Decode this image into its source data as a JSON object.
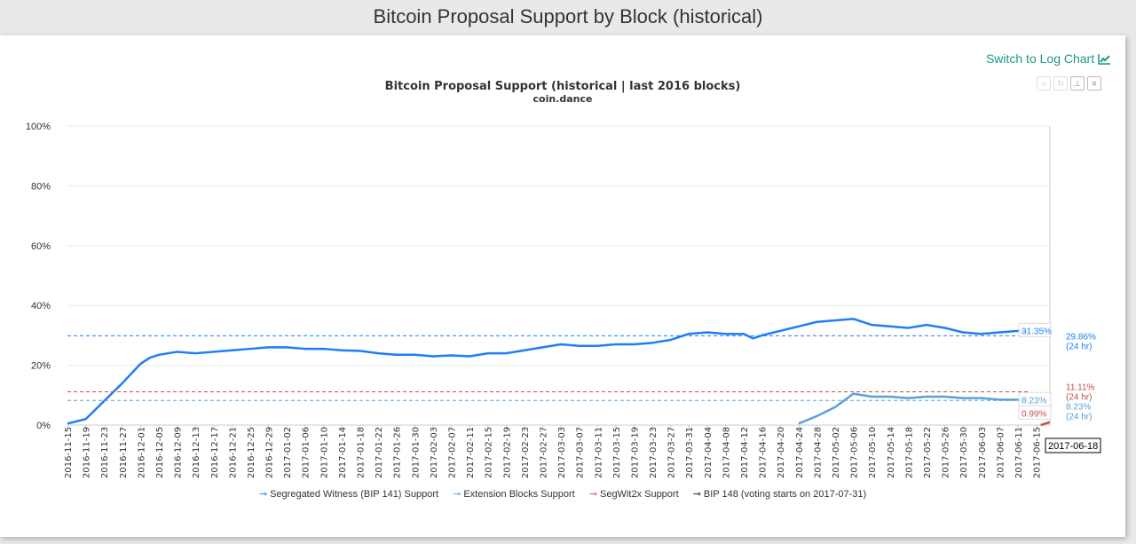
{
  "page_title": "Bitcoin Proposal Support by Block (historical)",
  "log_link": "Switch to Log Chart",
  "toolbar": {
    "icons": [
      "zoom-icon",
      "reset-icon",
      "pin-icon",
      "menu-icon"
    ]
  },
  "chart_data": {
    "type": "line",
    "title": "Bitcoin Proposal Support (historical | last 2016 blocks)",
    "subtitle": "coin.dance",
    "ylim": [
      0,
      100
    ],
    "y_ticks": [
      "0%",
      "20%",
      "40%",
      "60%",
      "80%",
      "100%"
    ],
    "y_tick_values": [
      0,
      20,
      40,
      60,
      80,
      100
    ],
    "x_range": [
      "2016-11-15",
      "2017-06-18"
    ],
    "x_ticks": [
      "2016-11-15",
      "2016-11-19",
      "2016-11-23",
      "2016-11-27",
      "2016-12-01",
      "2016-12-05",
      "2016-12-09",
      "2016-12-13",
      "2016-12-17",
      "2016-12-21",
      "2016-12-25",
      "2016-12-29",
      "2017-01-02",
      "2017-01-06",
      "2017-01-10",
      "2017-01-14",
      "2017-01-18",
      "2017-01-22",
      "2017-01-26",
      "2017-01-30",
      "2017-02-03",
      "2017-02-07",
      "2017-02-11",
      "2017-02-15",
      "2017-02-19",
      "2017-02-23",
      "2017-02-27",
      "2017-03-03",
      "2017-03-07",
      "2017-03-11",
      "2017-03-15",
      "2017-03-19",
      "2017-03-23",
      "2017-03-27",
      "2017-03-31",
      "2017-04-04",
      "2017-04-08",
      "2017-04-12",
      "2017-04-16",
      "2017-04-20",
      "2017-04-24",
      "2017-04-28",
      "2017-05-02",
      "2017-05-06",
      "2017-05-10",
      "2017-05-14",
      "2017-05-18",
      "2017-05-22",
      "2017-05-26",
      "2017-05-30",
      "2017-06-03",
      "2017-06-07",
      "2017-06-11",
      "2017-06-15"
    ],
    "grid": true,
    "legend_placement": "bottom",
    "crosshair_label": "2017-06-18",
    "series": [
      {
        "name": "Segregated Witness (BIP 141) Support",
        "color": "#1f7ef5",
        "current_label": "31.35%",
        "day24_value": 29.86,
        "day24_label": "29.86%",
        "day24_suffix": "(24 hr)",
        "points": [
          [
            "2016-11-15",
            0.5
          ],
          [
            "2016-11-19",
            2
          ],
          [
            "2016-11-23",
            8
          ],
          [
            "2016-11-27",
            14
          ],
          [
            "2016-12-01",
            20.5
          ],
          [
            "2016-12-03",
            22.5
          ],
          [
            "2016-12-05",
            23.5
          ],
          [
            "2016-12-09",
            24.5
          ],
          [
            "2016-12-13",
            24
          ],
          [
            "2016-12-17",
            24.5
          ],
          [
            "2016-12-21",
            25
          ],
          [
            "2016-12-25",
            25.5
          ],
          [
            "2016-12-29",
            26
          ],
          [
            "2017-01-02",
            26
          ],
          [
            "2017-01-06",
            25.5
          ],
          [
            "2017-01-10",
            25.5
          ],
          [
            "2017-01-14",
            25
          ],
          [
            "2017-01-18",
            24.8
          ],
          [
            "2017-01-22",
            24
          ],
          [
            "2017-01-26",
            23.5
          ],
          [
            "2017-01-30",
            23.5
          ],
          [
            "2017-02-03",
            23
          ],
          [
            "2017-02-07",
            23.3
          ],
          [
            "2017-02-11",
            23
          ],
          [
            "2017-02-15",
            24
          ],
          [
            "2017-02-19",
            24
          ],
          [
            "2017-02-23",
            25
          ],
          [
            "2017-02-27",
            26
          ],
          [
            "2017-03-03",
            27
          ],
          [
            "2017-03-07",
            26.5
          ],
          [
            "2017-03-11",
            26.5
          ],
          [
            "2017-03-15",
            27
          ],
          [
            "2017-03-19",
            27
          ],
          [
            "2017-03-23",
            27.5
          ],
          [
            "2017-03-27",
            28.5
          ],
          [
            "2017-03-31",
            30.5
          ],
          [
            "2017-04-04",
            31
          ],
          [
            "2017-04-08",
            30.5
          ],
          [
            "2017-04-12",
            30.5
          ],
          [
            "2017-04-14",
            29
          ],
          [
            "2017-04-16",
            30
          ],
          [
            "2017-04-20",
            31.5
          ],
          [
            "2017-04-24",
            33
          ],
          [
            "2017-04-28",
            34.5
          ],
          [
            "2017-05-02",
            35
          ],
          [
            "2017-05-06",
            35.5
          ],
          [
            "2017-05-10",
            33.5
          ],
          [
            "2017-05-14",
            33
          ],
          [
            "2017-05-18",
            32.5
          ],
          [
            "2017-05-22",
            33.5
          ],
          [
            "2017-05-26",
            32.5
          ],
          [
            "2017-05-30",
            31
          ],
          [
            "2017-06-03",
            30.5
          ],
          [
            "2017-06-07",
            31
          ],
          [
            "2017-06-11",
            31.5
          ],
          [
            "2017-06-13",
            31.35
          ]
        ]
      },
      {
        "name": "Extension Blocks Support",
        "color": "#5aa0dc",
        "current_label": "8.23%",
        "day24_value": 8.23,
        "day24_label": "8.23%",
        "day24_suffix": "(24 hr)",
        "points": [
          [
            "2017-04-24",
            0.5
          ],
          [
            "2017-04-28",
            3
          ],
          [
            "2017-05-02",
            6
          ],
          [
            "2017-05-06",
            10.5
          ],
          [
            "2017-05-10",
            9.5
          ],
          [
            "2017-05-14",
            9.5
          ],
          [
            "2017-05-18",
            9
          ],
          [
            "2017-05-22",
            9.5
          ],
          [
            "2017-05-26",
            9.5
          ],
          [
            "2017-05-30",
            9
          ],
          [
            "2017-06-03",
            9
          ],
          [
            "2017-06-07",
            8.5
          ],
          [
            "2017-06-11",
            8.5
          ],
          [
            "2017-06-13",
            8.23
          ]
        ]
      },
      {
        "name": "SegWit2x Support",
        "color": "#c0504d",
        "current_label": "0.99%",
        "day24_value": 11.11,
        "day24_label": "11.11%",
        "day24_suffix": "(24 hr)",
        "points": [
          [
            "2017-06-16",
            0
          ],
          [
            "2017-06-18",
            0.99
          ]
        ]
      },
      {
        "name": "BIP 148 (voting starts on 2017-07-31)",
        "color": "#111111",
        "points": []
      }
    ]
  }
}
